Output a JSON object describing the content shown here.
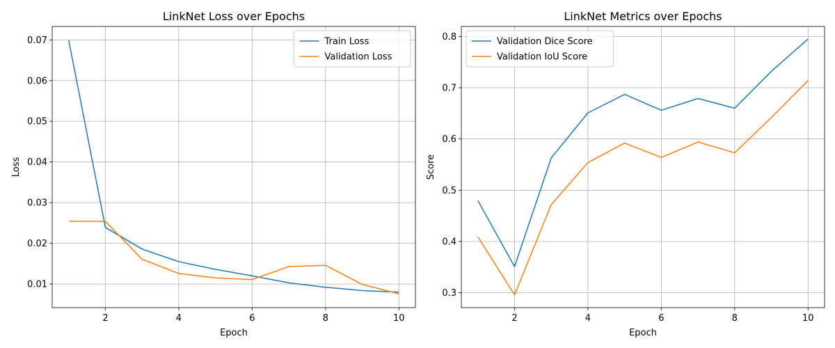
{
  "chart_data": [
    {
      "type": "line",
      "title": "LinkNet Loss over Epochs",
      "xlabel": "Epoch",
      "ylabel": "Loss",
      "x": [
        1,
        2,
        3,
        4,
        5,
        6,
        7,
        8,
        9,
        10
      ],
      "xlim": [
        0.55,
        10.45
      ],
      "ylim": [
        0.0042,
        0.0733
      ],
      "xticks": [
        2,
        4,
        6,
        8,
        10
      ],
      "xtick_labels": [
        "2",
        "4",
        "6",
        "8",
        "10"
      ],
      "yticks": [
        0.01,
        0.02,
        0.03,
        0.04,
        0.05,
        0.06,
        0.07
      ],
      "ytick_labels": [
        "0.01",
        "0.02",
        "0.03",
        "0.04",
        "0.05",
        "0.06",
        "0.07"
      ],
      "grid": true,
      "legend_position": "top-right",
      "series": [
        {
          "name": "Train Loss",
          "color": "#1f77b4",
          "values": [
            0.0699,
            0.0239,
            0.0186,
            0.0155,
            0.0136,
            0.012,
            0.0103,
            0.0092,
            0.0084,
            0.008
          ]
        },
        {
          "name": "Validation Loss",
          "color": "#ff7f0e",
          "values": [
            0.0254,
            0.0254,
            0.0161,
            0.0126,
            0.0115,
            0.0111,
            0.0143,
            0.0146,
            0.0099,
            0.0076
          ]
        }
      ]
    },
    {
      "type": "line",
      "title": "LinkNet Metrics over Epochs",
      "xlabel": "Epoch",
      "ylabel": "Score",
      "x": [
        1,
        2,
        3,
        4,
        5,
        6,
        7,
        8,
        9,
        10
      ],
      "xlim": [
        0.55,
        10.45
      ],
      "ylim": [
        0.271,
        0.8195
      ],
      "xticks": [
        2,
        4,
        6,
        8,
        10
      ],
      "xtick_labels": [
        "2",
        "4",
        "6",
        "8",
        "10"
      ],
      "yticks": [
        0.3,
        0.4,
        0.5,
        0.6,
        0.7,
        0.8
      ],
      "ytick_labels": [
        "0.3",
        "0.4",
        "0.5",
        "0.6",
        "0.7",
        "0.8"
      ],
      "grid": true,
      "legend_position": "top-left",
      "series": [
        {
          "name": "Validation Dice Score",
          "color": "#1f77b4",
          "values": [
            0.48,
            0.351,
            0.563,
            0.651,
            0.687,
            0.656,
            0.679,
            0.66,
            0.732,
            0.795
          ]
        },
        {
          "name": "Validation IoU Score",
          "color": "#ff7f0e",
          "values": [
            0.409,
            0.296,
            0.472,
            0.554,
            0.592,
            0.564,
            0.594,
            0.573,
            0.642,
            0.714
          ]
        }
      ]
    }
  ]
}
